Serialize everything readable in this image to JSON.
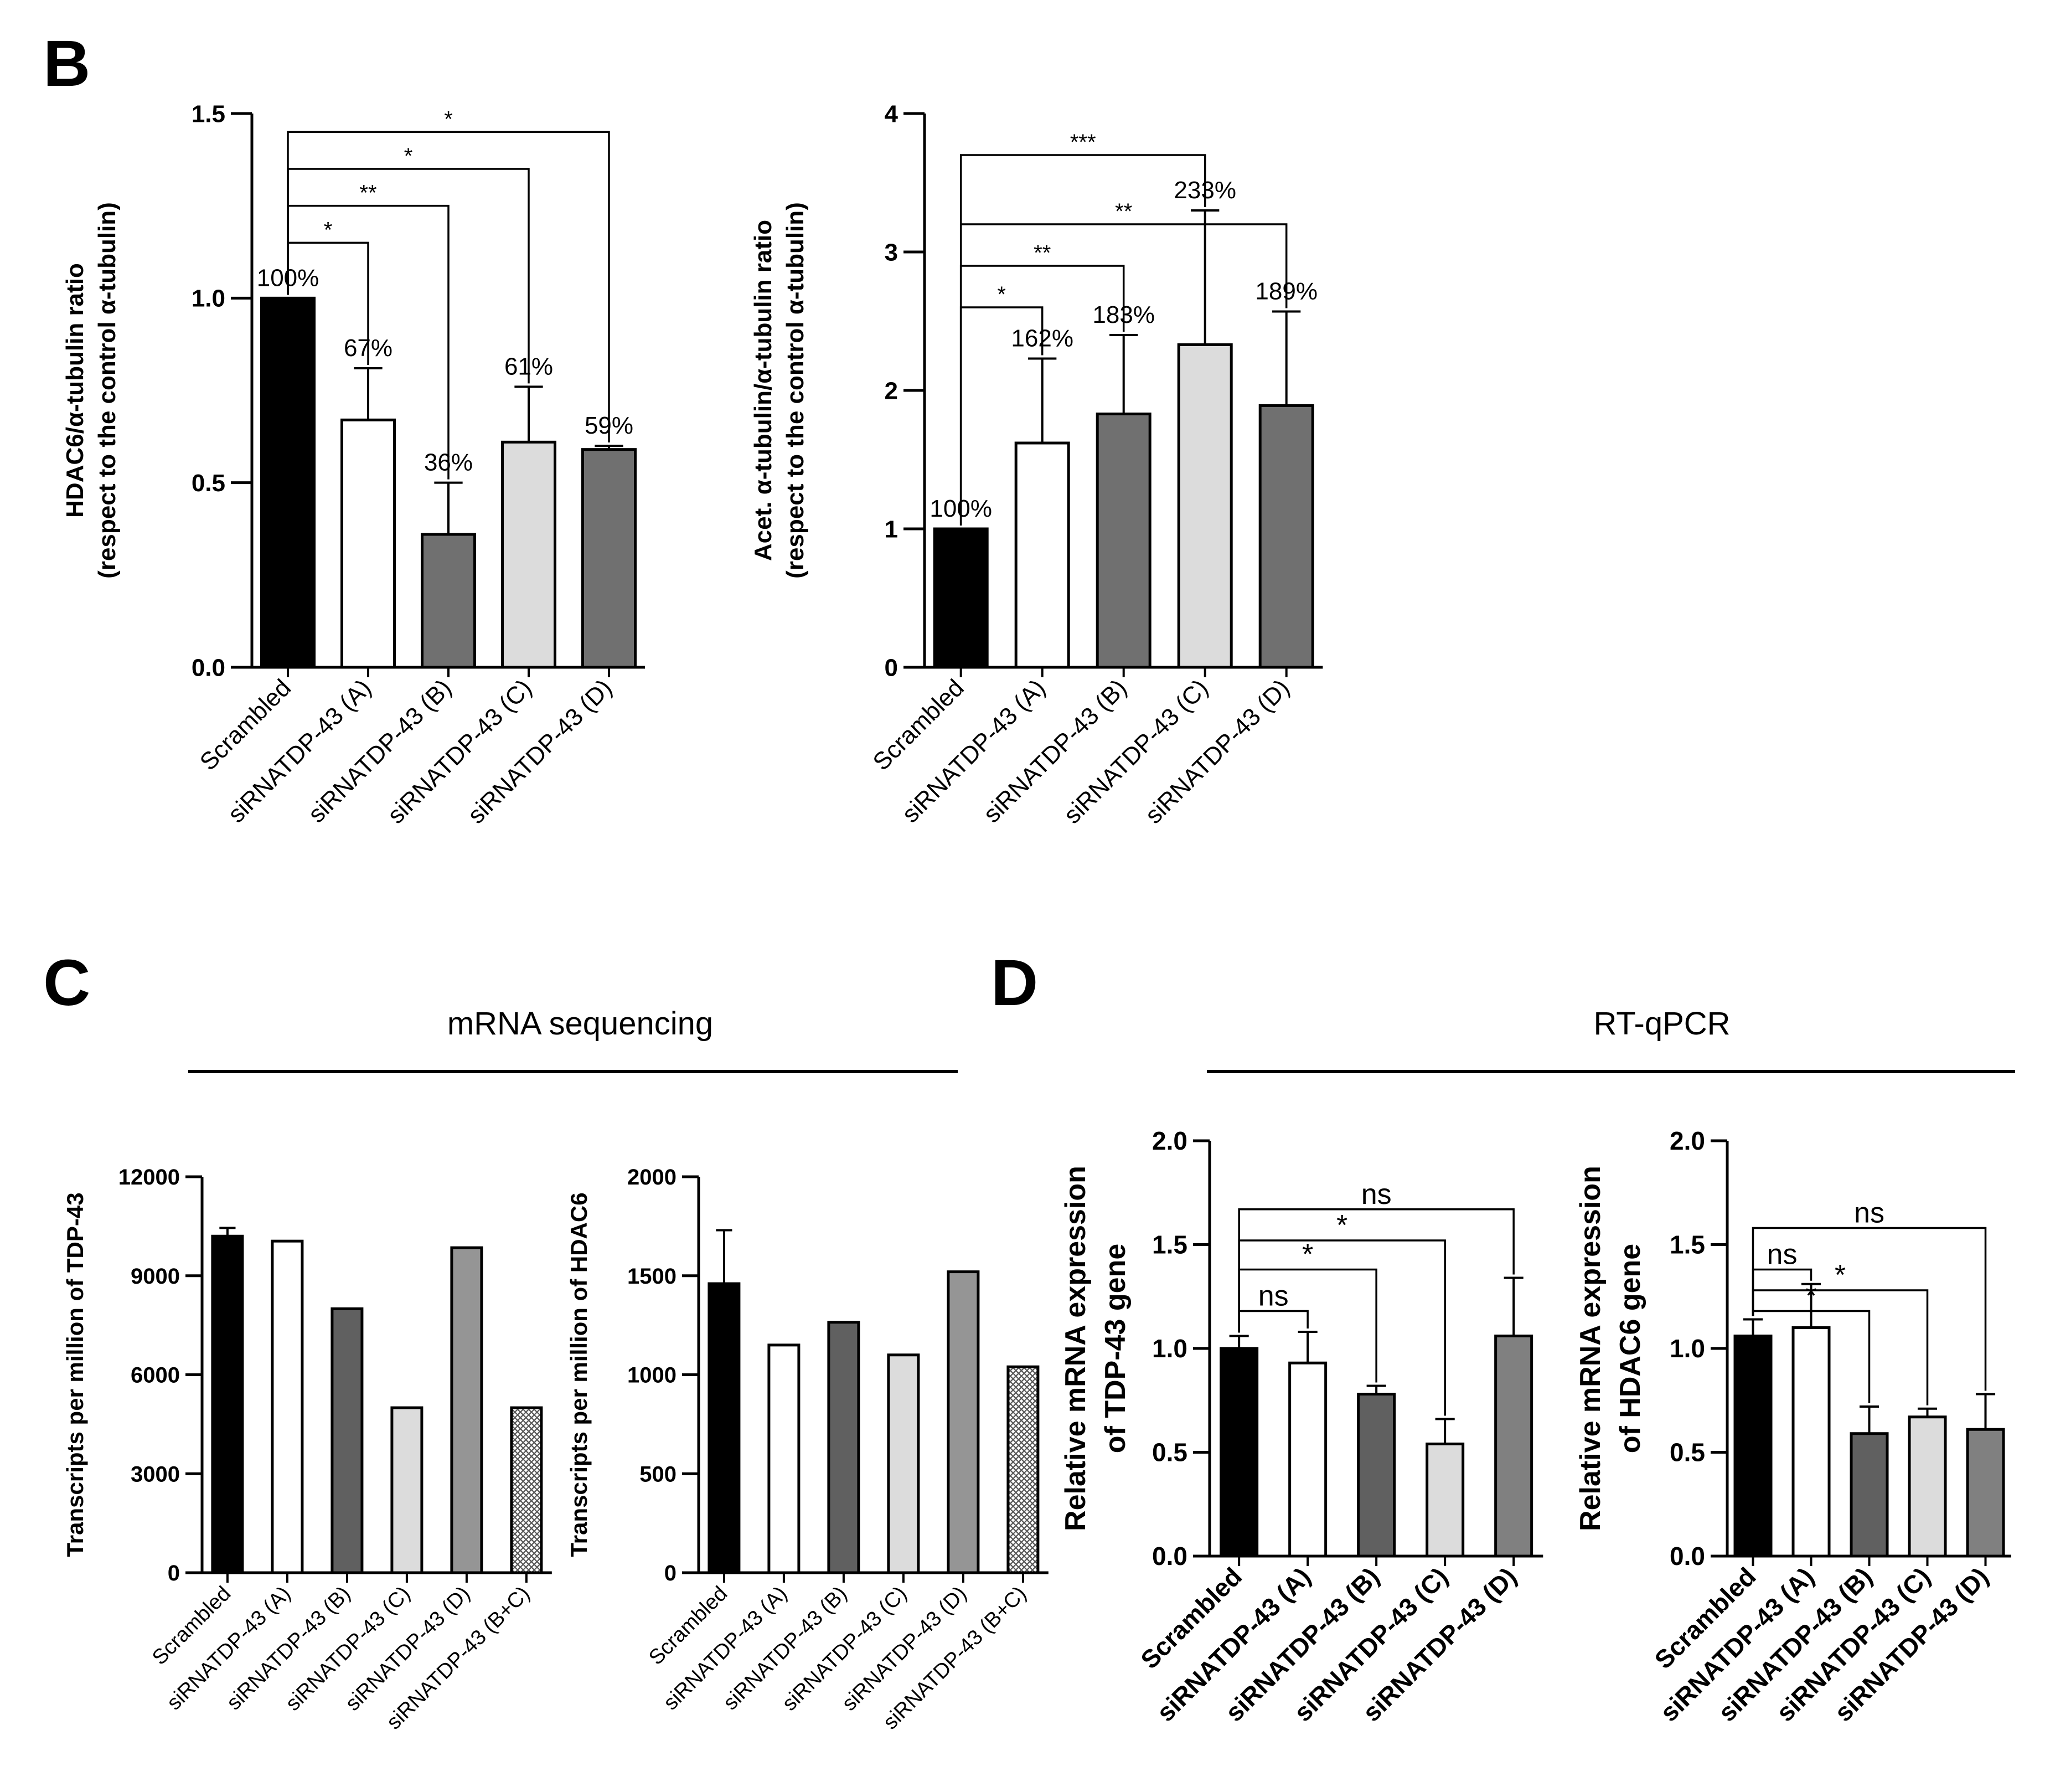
{
  "panels": {
    "B": {
      "letter": "B"
    },
    "C": {
      "letter": "C",
      "header": "mRNA sequencing"
    },
    "D": {
      "letter": "D",
      "header": "RT-qPCR"
    }
  },
  "chart_data": [
    {
      "id": "B-left",
      "type": "bar",
      "ylabel": [
        "HDAC6/α-tubulin ratio",
        "(respect to the control α-tubulin)"
      ],
      "ylim": [
        0,
        1.5
      ],
      "yticks": [
        0.0,
        0.5,
        1.0,
        1.5
      ],
      "ytick_labels": [
        "0.0",
        "0.5",
        "1.0",
        "1.5"
      ],
      "categories": [
        "Scrambled",
        "siRNATDP-43 (A)",
        "siRNATDP-43 (B)",
        "siRNATDP-43 (C)",
        "siRNATDP-43 (D)"
      ],
      "values": [
        1.0,
        0.67,
        0.36,
        0.61,
        0.59
      ],
      "errors": [
        0,
        0.14,
        0.14,
        0.15,
        0.01
      ],
      "colors": [
        "#000000",
        "#ffffff",
        "#707070",
        "#dcdcdc",
        "#707070"
      ],
      "data_labels": [
        "100%",
        "67%",
        "36%",
        "61%",
        "59%"
      ],
      "significance": [
        {
          "from": 0,
          "to": 1,
          "y": 1.15,
          "label": "*"
        },
        {
          "from": 0,
          "to": 2,
          "y": 1.25,
          "label": "**"
        },
        {
          "from": 0,
          "to": 3,
          "y": 1.35,
          "label": "*"
        },
        {
          "from": 0,
          "to": 4,
          "y": 1.45,
          "label": "*"
        }
      ]
    },
    {
      "id": "B-right",
      "type": "bar",
      "ylabel": [
        "Acet. α-tubulin/α-tubulin ratio",
        "(respect to the control α-tubulin)"
      ],
      "ylim": [
        0,
        4
      ],
      "yticks": [
        0,
        1,
        2,
        3,
        4
      ],
      "ytick_labels": [
        "0",
        "1",
        "2",
        "3",
        "4"
      ],
      "categories": [
        "Scrambled",
        "siRNATDP-43 (A)",
        "siRNATDP-43 (B)",
        "siRNATDP-43 (C)",
        "siRNATDP-43 (D)"
      ],
      "values": [
        1.0,
        1.62,
        1.83,
        2.33,
        1.89
      ],
      "errors": [
        0,
        0.61,
        0.57,
        0.97,
        0.68
      ],
      "colors": [
        "#000000",
        "#ffffff",
        "#707070",
        "#dcdcdc",
        "#707070"
      ],
      "data_labels": [
        "100%",
        "162%",
        "183%",
        "233%",
        "189%"
      ],
      "significance": [
        {
          "from": 0,
          "to": 1,
          "y": 2.6,
          "label": "*"
        },
        {
          "from": 0,
          "to": 2,
          "y": 2.9,
          "label": "**"
        },
        {
          "from": 0,
          "to": 4,
          "y": 3.2,
          "label": "**"
        },
        {
          "from": 0,
          "to": 3,
          "y": 3.7,
          "label": "***"
        }
      ]
    },
    {
      "id": "C-left",
      "type": "bar",
      "ylabel": [
        "Transcripts per million of TDP-43"
      ],
      "ylim": [
        0,
        12000
      ],
      "yticks": [
        0,
        3000,
        6000,
        9000,
        12000
      ],
      "ytick_labels": [
        "0",
        "3000",
        "6000",
        "9000",
        "12000"
      ],
      "categories": [
        "Scrambled",
        "siRNATDP-43 (A)",
        "siRNATDP-43 (B)",
        "siRNATDP-43 (C)",
        "siRNATDP-43 (D)",
        "siRNATDP-43 (B+C)"
      ],
      "values": [
        10200,
        10050,
        8000,
        5000,
        9850,
        5000
      ],
      "errors": [
        250,
        0,
        0,
        0,
        0,
        0
      ],
      "colors": [
        "#000000",
        "#ffffff",
        "#606060",
        "#dcdcdc",
        "#959595",
        "hatch"
      ],
      "data_labels": [],
      "significance": []
    },
    {
      "id": "C-right",
      "type": "bar",
      "ylabel": [
        "Transcripts per million of HDAC6"
      ],
      "ylim": [
        0,
        2000
      ],
      "yticks": [
        0,
        500,
        1000,
        1500,
        2000
      ],
      "ytick_labels": [
        "0",
        "500",
        "1000",
        "1500",
        "2000"
      ],
      "categories": [
        "Scrambled",
        "siRNATDP-43 (A)",
        "siRNATDP-43 (B)",
        "siRNATDP-43 (C)",
        "siRNATDP-43 (D)",
        "siRNATDP-43 (B+C)"
      ],
      "values": [
        1460,
        1150,
        1265,
        1100,
        1520,
        1040
      ],
      "errors": [
        270,
        0,
        0,
        0,
        0,
        0
      ],
      "colors": [
        "#000000",
        "#ffffff",
        "#606060",
        "#dcdcdc",
        "#959595",
        "hatch"
      ],
      "data_labels": [],
      "significance": []
    },
    {
      "id": "D-left",
      "type": "bar",
      "ylabel": [
        "Relative mRNA expression",
        "of TDP-43 gene"
      ],
      "ylim": [
        0,
        2.0
      ],
      "yticks": [
        0.0,
        0.5,
        1.0,
        1.5,
        2.0
      ],
      "ytick_labels": [
        "0.0",
        "0.5",
        "1.0",
        "1.5",
        "2.0"
      ],
      "categories": [
        "Scrambled",
        "siRNATDP-43 (A)",
        "siRNATDP-43 (B)",
        "siRNATDP-43 (C)",
        "siRNATDP-43 (D)"
      ],
      "values": [
        1.0,
        0.93,
        0.78,
        0.54,
        1.06
      ],
      "errors": [
        0.06,
        0.15,
        0.04,
        0.12,
        0.28
      ],
      "colors": [
        "#000000",
        "#ffffff",
        "#606060",
        "#dcdcdc",
        "#808080"
      ],
      "data_labels": [],
      "significance": [
        {
          "from": 0,
          "to": 1,
          "y": 1.18,
          "label": "ns"
        },
        {
          "from": 0,
          "to": 2,
          "y": 1.38,
          "label": "*"
        },
        {
          "from": 0,
          "to": 3,
          "y": 1.52,
          "label": "*"
        },
        {
          "from": 0,
          "to": 4,
          "y": 1.67,
          "label": "ns"
        }
      ]
    },
    {
      "id": "D-right",
      "type": "bar",
      "ylabel": [
        "Relative mRNA expression",
        "of HDAC6 gene"
      ],
      "ylim": [
        0,
        2.0
      ],
      "yticks": [
        0.0,
        0.5,
        1.0,
        1.5,
        2.0
      ],
      "ytick_labels": [
        "0.0",
        "0.5",
        "1.0",
        "1.5",
        "2.0"
      ],
      "categories": [
        "Scrambled",
        "siRNATDP-43 (A)",
        "siRNATDP-43 (B)",
        "siRNATDP-43 (C)",
        "siRNATDP-43 (D)"
      ],
      "values": [
        1.06,
        1.1,
        0.59,
        0.67,
        0.61
      ],
      "errors": [
        0.08,
        0.21,
        0.13,
        0.04,
        0.17
      ],
      "colors": [
        "#000000",
        "#ffffff",
        "#606060",
        "#dcdcdc",
        "#808080"
      ],
      "data_labels": [],
      "significance": [
        {
          "from": 0,
          "to": 1,
          "y": 1.38,
          "label": "ns"
        },
        {
          "from": 0,
          "to": 2,
          "y": 1.18,
          "label": "*"
        },
        {
          "from": 0,
          "to": 3,
          "y": 1.28,
          "label": "*"
        },
        {
          "from": 0,
          "to": 4,
          "y": 1.58,
          "label": "ns"
        }
      ]
    }
  ]
}
